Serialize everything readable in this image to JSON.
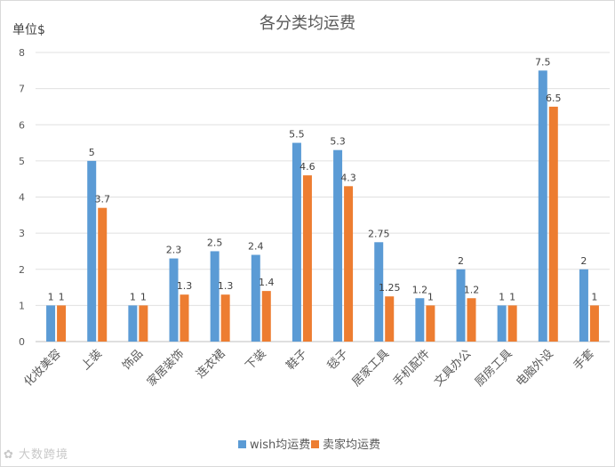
{
  "chart_data": {
    "type": "bar",
    "title": "各分类均运费",
    "ylabel": "单位$",
    "ylim": [
      0,
      8
    ],
    "yticks": [
      0,
      1,
      2,
      3,
      4,
      5,
      6,
      7,
      8
    ],
    "grid": "horizontal",
    "legend_position": "bottom",
    "categories": [
      "化妆美容",
      "上装",
      "饰品",
      "家居装饰",
      "连衣裙",
      "下装",
      "鞋子",
      "毯子",
      "居家工具",
      "手机配件",
      "文具办公",
      "厨房工具",
      "电脑外设",
      "手套"
    ],
    "series": [
      {
        "name": "wish均运费",
        "color": "#5b9bd5",
        "values": [
          1,
          5,
          1,
          2.3,
          2.5,
          2.4,
          5.5,
          5.3,
          2.75,
          1.2,
          2,
          1,
          7.5,
          2
        ],
        "labels": [
          "1",
          "5",
          "1",
          "2.3",
          "2.5",
          "2.4",
          "5.5",
          "5.3",
          "2.75",
          "1.2",
          "2",
          "1",
          "7.5",
          "2"
        ]
      },
      {
        "name": "卖家均运费",
        "color": "#ed7d31",
        "values": [
          1,
          3.7,
          1,
          1.3,
          1.3,
          1.4,
          4.6,
          4.3,
          1.25,
          1,
          1.2,
          1,
          6.5,
          1
        ],
        "labels": [
          "1",
          "3.7",
          "1",
          "1.3",
          "1.3",
          "1.4",
          "4.6",
          "4.3",
          "1.25",
          "1",
          "1.2",
          "1",
          "6.5",
          "1"
        ]
      }
    ]
  },
  "watermark": "大数跨境"
}
